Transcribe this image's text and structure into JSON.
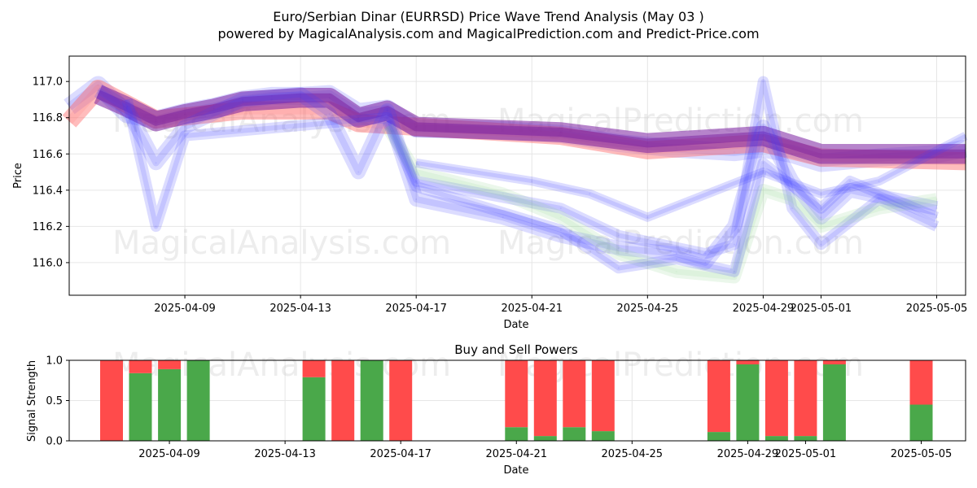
{
  "header": {
    "title": "Euro/Serbian Dinar (EURRSD) Price Wave Trend Analysis (May 03 )",
    "subtitle": "powered by MagicalAnalysis.com and MagicalPrediction.com and Predict-Price.com"
  },
  "watermarks": [
    "MagicalAnalysis.com",
    "MagicalPrediction.com"
  ],
  "colors": {
    "buy": "#4aa84a",
    "sell": "#ff4b4b",
    "band_blue": "#3b3bff",
    "band_red": "#ff6b6b",
    "band_purple": "#7a1fa0",
    "band_green": "#8fd48f"
  },
  "chart_data": [
    {
      "type": "line",
      "xlabel": "Date",
      "ylabel": "Price",
      "xlim": [
        "2025-04-05",
        "2025-05-06"
      ],
      "ylim": [
        115.82,
        117.14
      ],
      "yticks": [
        "116.0",
        "116.2",
        "116.4",
        "116.6",
        "116.8",
        "117.0"
      ],
      "xticks": [
        "2025-04-09",
        "2025-04-13",
        "2025-04-17",
        "2025-04-21",
        "2025-04-25",
        "2025-04-29",
        "2025-05-01",
        "2025-05-05"
      ],
      "grid": true,
      "series": [
        {
          "color": "blue",
          "width": 0.1,
          "x": [
            "2025-04-05",
            "2025-04-06",
            "2025-04-07",
            "2025-04-08",
            "2025-04-09",
            "2025-04-10",
            "2025-04-11",
            "2025-04-12",
            "2025-04-13",
            "2025-04-14",
            "2025-04-15",
            "2025-04-16",
            "2025-04-17",
            "2025-04-20",
            "2025-04-22",
            "2025-04-24",
            "2025-04-26",
            "2025-04-28",
            "2025-04-29",
            "2025-04-30",
            "2025-05-01",
            "2025-05-03",
            "2025-05-05",
            "2025-05-06"
          ],
          "y": [
            116.86,
            116.98,
            116.82,
            116.79,
            116.83,
            116.86,
            116.9,
            116.92,
            116.92,
            116.93,
            116.83,
            116.85,
            116.74,
            116.73,
            116.71,
            116.66,
            116.63,
            116.61,
            116.63,
            116.6,
            116.55,
            116.58,
            116.6,
            116.63
          ]
        },
        {
          "color": "red",
          "width": 0.1,
          "x": [
            "2025-04-05",
            "2025-04-06",
            "2025-04-08",
            "2025-04-11",
            "2025-04-14",
            "2025-04-15",
            "2025-04-17",
            "2025-04-22",
            "2025-04-25",
            "2025-04-29",
            "2025-05-01",
            "2025-05-06"
          ],
          "y": [
            116.78,
            116.96,
            116.79,
            116.84,
            116.84,
            116.77,
            116.75,
            116.7,
            116.62,
            116.66,
            116.58,
            116.56
          ]
        },
        {
          "color": "purple",
          "width": 0.11,
          "x": [
            "2025-04-06",
            "2025-04-07",
            "2025-04-08",
            "2025-04-09",
            "2025-04-10",
            "2025-04-11",
            "2025-04-12",
            "2025-04-13",
            "2025-04-14",
            "2025-04-15",
            "2025-04-16",
            "2025-04-17",
            "2025-04-22",
            "2025-04-25",
            "2025-04-29",
            "2025-05-01",
            "2025-05-06"
          ],
          "y": [
            116.93,
            116.86,
            116.78,
            116.82,
            116.85,
            116.89,
            116.9,
            116.91,
            116.91,
            116.8,
            116.84,
            116.75,
            116.72,
            116.66,
            116.7,
            116.6,
            116.6
          ]
        },
        {
          "color": "blue",
          "width": 0.08,
          "x": [
            "2025-04-06",
            "2025-04-07",
            "2025-04-08",
            "2025-04-09",
            "2025-04-11",
            "2025-04-13",
            "2025-04-14",
            "2025-04-15",
            "2025-04-16",
            "2025-04-17",
            "2025-04-20",
            "2025-04-22",
            "2025-04-24",
            "2025-04-26",
            "2025-04-27",
            "2025-04-28",
            "2025-04-29",
            "2025-04-30",
            "2025-05-01",
            "2025-05-02",
            "2025-05-05"
          ],
          "y": [
            116.95,
            116.85,
            116.55,
            116.75,
            116.9,
            116.93,
            116.82,
            116.5,
            116.84,
            116.35,
            116.25,
            116.15,
            116.08,
            116.05,
            116.0,
            116.2,
            116.75,
            116.45,
            116.25,
            116.4,
            116.3
          ]
        },
        {
          "color": "blue",
          "width": 0.06,
          "x": [
            "2025-04-07",
            "2025-04-08",
            "2025-04-09",
            "2025-04-16",
            "2025-04-17",
            "2025-04-22",
            "2025-04-24",
            "2025-04-27",
            "2025-04-28",
            "2025-04-29",
            "2025-04-30",
            "2025-05-01",
            "2025-05-03",
            "2025-05-05"
          ],
          "y": [
            116.9,
            116.2,
            116.7,
            116.8,
            116.45,
            116.3,
            116.15,
            116.05,
            116.1,
            117.0,
            116.3,
            116.1,
            116.35,
            116.2
          ]
        },
        {
          "color": "green",
          "width": 0.07,
          "x": [
            "2025-04-16",
            "2025-04-17",
            "2025-04-20",
            "2025-04-22",
            "2025-04-24",
            "2025-04-26",
            "2025-04-28",
            "2025-04-29",
            "2025-04-30",
            "2025-05-01",
            "2025-05-03",
            "2025-05-05"
          ],
          "y": [
            116.75,
            116.5,
            116.38,
            116.25,
            116.05,
            115.95,
            115.92,
            116.4,
            116.35,
            116.2,
            116.3,
            116.35
          ]
        },
        {
          "color": "blue",
          "width": 0.06,
          "x": [
            "2025-04-16",
            "2025-04-17",
            "2025-04-22",
            "2025-04-24",
            "2025-04-26",
            "2025-04-28",
            "2025-04-29",
            "2025-05-01",
            "2025-05-02",
            "2025-05-05"
          ],
          "y": [
            116.78,
            116.42,
            116.18,
            115.97,
            116.02,
            115.95,
            116.55,
            116.3,
            116.45,
            116.25
          ]
        },
        {
          "color": "blue",
          "width": 0.05,
          "x": [
            "2025-04-17",
            "2025-04-21",
            "2025-04-23",
            "2025-04-25",
            "2025-04-29",
            "2025-05-01",
            "2025-05-03",
            "2025-05-06"
          ],
          "y": [
            116.55,
            116.45,
            116.38,
            116.25,
            116.5,
            116.38,
            116.45,
            116.7
          ]
        }
      ]
    },
    {
      "type": "bar",
      "title": "Buy and Sell Powers",
      "xlabel": "Date",
      "ylabel": "Signal Strength",
      "ylim": [
        0,
        1
      ],
      "yticks": [
        "0.0",
        "0.5",
        "1.0"
      ],
      "xticks": [
        "2025-04-09",
        "2025-04-13",
        "2025-04-17",
        "2025-04-21",
        "2025-04-25",
        "2025-04-29",
        "2025-05-01",
        "2025-05-05"
      ],
      "grid": true,
      "categories": [
        "2025-04-07",
        "2025-04-08",
        "2025-04-09",
        "2025-04-10",
        "2025-04-14",
        "2025-04-15",
        "2025-04-16",
        "2025-04-17",
        "2025-04-21",
        "2025-04-22",
        "2025-04-23",
        "2025-04-24",
        "2025-04-28",
        "2025-04-29",
        "2025-04-30",
        "2025-05-01",
        "2025-05-02",
        "2025-05-05"
      ],
      "series": [
        {
          "name": "Buy",
          "values": [
            0.0,
            0.84,
            0.89,
            1.0,
            0.79,
            0.0,
            1.0,
            0.0,
            0.17,
            0.06,
            0.17,
            0.12,
            0.11,
            0.95,
            0.06,
            0.06,
            0.95,
            0.45
          ]
        },
        {
          "name": "Sell",
          "values": [
            1.0,
            0.16,
            0.11,
            0.0,
            0.21,
            1.0,
            0.0,
            1.0,
            0.83,
            0.94,
            0.83,
            0.88,
            0.89,
            0.05,
            0.94,
            0.94,
            0.05,
            0.55
          ]
        }
      ]
    }
  ]
}
